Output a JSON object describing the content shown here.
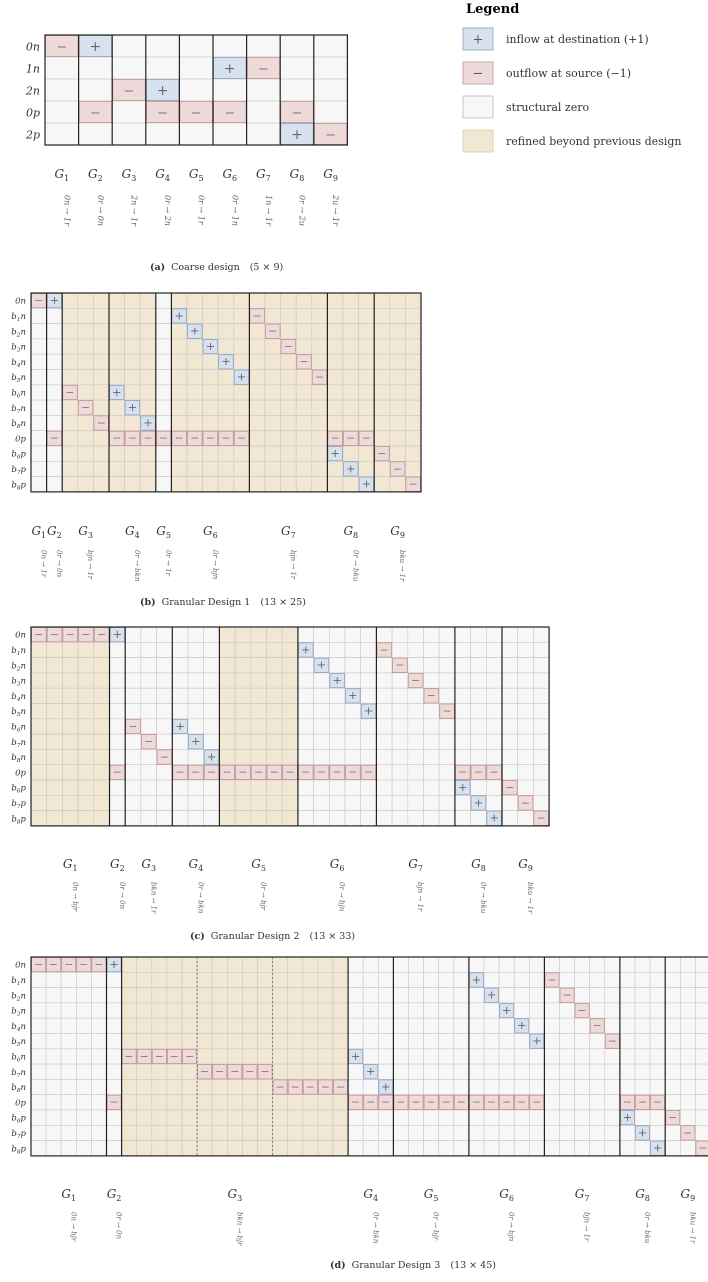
{
  "legend": {
    "title": "Legend",
    "items": [
      {
        "kind": "plus",
        "symbol": "+",
        "label": "inflow at destination (+1)"
      },
      {
        "kind": "minus",
        "symbol": "−",
        "label": "outflow at source (−1)"
      },
      {
        "kind": "zero",
        "symbol": "",
        "label": "structural zero"
      },
      {
        "kind": "refined",
        "symbol": "",
        "label": "refined beyond previous design"
      }
    ]
  },
  "colors": {
    "plus_fill": "#d7e2ee",
    "plus_stroke": "#8aa2bd",
    "minus_fill": "#efdada",
    "minus_stroke": "#c49393",
    "zero_fill": "#f7f7f7",
    "refined_fill": "#f1e7d2",
    "grid": "#c8c8c8",
    "block": "#222222",
    "text": "#333333"
  },
  "panels": [
    {
      "id": "a",
      "caption_letter": "(a)",
      "caption_text": "Coarse design",
      "caption_dims": "(5 × 9)",
      "rows": [
        "0n",
        "1n",
        "2n",
        "0p",
        "2p"
      ],
      "ncols": 9,
      "groups": [
        {
          "label": "G",
          "sub": "1",
          "flow": "0n → 1r",
          "start": 0,
          "size": 1
        },
        {
          "label": "G",
          "sub": "2",
          "flow": "0r → 0n",
          "start": 1,
          "size": 1
        },
        {
          "label": "G",
          "sub": "3",
          "flow": "2n → 1r",
          "start": 2,
          "size": 1
        },
        {
          "label": "G",
          "sub": "4",
          "flow": "0r → 2n",
          "start": 3,
          "size": 1
        },
        {
          "label": "G",
          "sub": "5",
          "flow": "0r → 1r",
          "start": 4,
          "size": 1
        },
        {
          "label": "G",
          "sub": "6",
          "flow": "0r → 1n",
          "start": 5,
          "size": 1
        },
        {
          "label": "G",
          "sub": "7",
          "flow": "1n → 1r",
          "start": 6,
          "size": 1
        },
        {
          "label": "G",
          "sub": "8",
          "flow": "0r → 2u",
          "start": 7,
          "size": 1
        },
        {
          "label": "G",
          "sub": "9",
          "flow": "2u → 1r",
          "start": 8,
          "size": 1
        }
      ],
      "shaded_cols": [],
      "dotted_cols": [],
      "minus": [
        [
          0,
          0
        ],
        [
          2,
          2
        ],
        [
          1,
          6
        ],
        [
          3,
          1
        ],
        [
          3,
          3
        ],
        [
          3,
          4
        ],
        [
          3,
          5
        ],
        [
          3,
          7
        ],
        [
          4,
          8
        ]
      ],
      "plus": [
        [
          0,
          1
        ],
        [
          2,
          3
        ],
        [
          1,
          5
        ],
        [
          4,
          7
        ]
      ]
    },
    {
      "id": "b",
      "caption_letter": "(b)",
      "caption_text": "Granular Design 1",
      "caption_dims": "(13 × 25)",
      "rows": [
        "0n",
        "b1n",
        "b2n",
        "b3n",
        "b4n",
        "b5n",
        "b6n",
        "b7n",
        "b8n",
        "0p",
        "b6p",
        "b7p",
        "b8p"
      ],
      "ncols": 25,
      "groups": [
        {
          "label": "G",
          "sub": "1",
          "flow": "0n → 1r",
          "start": 0,
          "size": 1
        },
        {
          "label": "G",
          "sub": "2",
          "flow": "0r → 0n",
          "start": 1,
          "size": 1
        },
        {
          "label": "G",
          "sub": "3",
          "flow": "bjn → 1r",
          "start": 2,
          "size": 3
        },
        {
          "label": "G",
          "sub": "4",
          "flow": "0r → bkn",
          "start": 5,
          "size": 3
        },
        {
          "label": "G",
          "sub": "5",
          "flow": "0r → 1r",
          "start": 8,
          "size": 1
        },
        {
          "label": "G",
          "sub": "6",
          "flow": "0r → bjn",
          "start": 9,
          "size": 5
        },
        {
          "label": "G",
          "sub": "7",
          "flow": "bjn → 1r",
          "start": 14,
          "size": 5
        },
        {
          "label": "G",
          "sub": "8",
          "flow": "0r → bku",
          "start": 19,
          "size": 3
        },
        {
          "label": "G",
          "sub": "9",
          "flow": "bku → 1r",
          "start": 22,
          "size": 3
        }
      ],
      "shaded_cols": [
        2,
        3,
        4,
        5,
        6,
        7,
        9,
        10,
        11,
        12,
        13,
        14,
        15,
        16,
        17,
        18,
        19,
        20,
        21,
        22,
        23,
        24
      ],
      "dotted_cols": [],
      "minus": [
        [
          0,
          0
        ],
        [
          9,
          1
        ],
        [
          6,
          2
        ],
        [
          7,
          3
        ],
        [
          8,
          4
        ],
        [
          9,
          5
        ],
        [
          9,
          6
        ],
        [
          9,
          7
        ],
        [
          9,
          8
        ],
        [
          9,
          9
        ],
        [
          9,
          10
        ],
        [
          9,
          11
        ],
        [
          9,
          12
        ],
        [
          9,
          13
        ],
        [
          1,
          14
        ],
        [
          2,
          15
        ],
        [
          3,
          16
        ],
        [
          4,
          17
        ],
        [
          5,
          18
        ],
        [
          9,
          19
        ],
        [
          9,
          20
        ],
        [
          9,
          21
        ],
        [
          10,
          22
        ],
        [
          11,
          23
        ],
        [
          12,
          24
        ]
      ],
      "plus": [
        [
          0,
          1
        ],
        [
          6,
          5
        ],
        [
          7,
          6
        ],
        [
          8,
          7
        ],
        [
          1,
          9
        ],
        [
          2,
          10
        ],
        [
          3,
          11
        ],
        [
          4,
          12
        ],
        [
          5,
          13
        ],
        [
          10,
          19
        ],
        [
          11,
          20
        ],
        [
          12,
          21
        ]
      ]
    },
    {
      "id": "c",
      "caption_letter": "(c)",
      "caption_text": "Granular Design 2",
      "caption_dims": "(13 × 33)",
      "rows": [
        "0n",
        "b1n",
        "b2n",
        "b3n",
        "b4n",
        "b5n",
        "b6n",
        "b7n",
        "b8n",
        "0p",
        "b6p",
        "b7p",
        "b8p"
      ],
      "ncols": 33,
      "groups": [
        {
          "label": "G",
          "sub": "1",
          "flow": "0n → bjr",
          "start": 0,
          "size": 5
        },
        {
          "label": "G",
          "sub": "2",
          "flow": "0r → 0n",
          "start": 5,
          "size": 1
        },
        {
          "label": "G",
          "sub": "3",
          "flow": "bkn → 1r",
          "start": 6,
          "size": 3
        },
        {
          "label": "G",
          "sub": "4",
          "flow": "0r → bkn",
          "start": 9,
          "size": 3
        },
        {
          "label": "G",
          "sub": "5",
          "flow": "0r → bjr",
          "start": 12,
          "size": 5
        },
        {
          "label": "G",
          "sub": "6",
          "flow": "0r → bjn",
          "start": 17,
          "size": 5
        },
        {
          "label": "G",
          "sub": "7",
          "flow": "bjn → 1r",
          "start": 22,
          "size": 5
        },
        {
          "label": "G",
          "sub": "8",
          "flow": "0r → bku",
          "start": 27,
          "size": 3
        },
        {
          "label": "G",
          "sub": "9",
          "flow": "bku → 1r",
          "start": 30,
          "size": 3
        }
      ],
      "shaded_cols": [
        0,
        1,
        2,
        3,
        4,
        12,
        13,
        14,
        15,
        16
      ],
      "dotted_cols": [],
      "minus": [
        [
          0,
          0
        ],
        [
          0,
          1
        ],
        [
          0,
          2
        ],
        [
          0,
          3
        ],
        [
          0,
          4
        ],
        [
          9,
          5
        ],
        [
          6,
          6
        ],
        [
          7,
          7
        ],
        [
          8,
          8
        ],
        [
          9,
          9
        ],
        [
          9,
          10
        ],
        [
          9,
          11
        ],
        [
          9,
          12
        ],
        [
          9,
          13
        ],
        [
          9,
          14
        ],
        [
          9,
          15
        ],
        [
          9,
          16
        ],
        [
          9,
          17
        ],
        [
          9,
          18
        ],
        [
          9,
          19
        ],
        [
          9,
          20
        ],
        [
          9,
          21
        ],
        [
          1,
          22
        ],
        [
          2,
          23
        ],
        [
          3,
          24
        ],
        [
          4,
          25
        ],
        [
          5,
          26
        ],
        [
          9,
          27
        ],
        [
          9,
          28
        ],
        [
          9,
          29
        ],
        [
          10,
          30
        ],
        [
          11,
          31
        ],
        [
          12,
          32
        ]
      ],
      "plus": [
        [
          0,
          5
        ],
        [
          6,
          9
        ],
        [
          7,
          10
        ],
        [
          8,
          11
        ],
        [
          1,
          17
        ],
        [
          2,
          18
        ],
        [
          3,
          19
        ],
        [
          4,
          20
        ],
        [
          5,
          21
        ],
        [
          10,
          27
        ],
        [
          11,
          28
        ],
        [
          12,
          29
        ]
      ]
    },
    {
      "id": "d",
      "caption_letter": "(d)",
      "caption_text": "Granular Design 3",
      "caption_dims": "(13 × 45)",
      "rows": [
        "0n",
        "b1n",
        "b2n",
        "b3n",
        "b4n",
        "b5n",
        "b6n",
        "b7n",
        "b8n",
        "0p",
        "b6p",
        "b7p",
        "b8p"
      ],
      "ncols": 45,
      "groups": [
        {
          "label": "G",
          "sub": "1",
          "flow": "0n → bjr",
          "start": 0,
          "size": 5
        },
        {
          "label": "G",
          "sub": "2",
          "flow": "0r → 0n",
          "start": 5,
          "size": 1
        },
        {
          "label": "G",
          "sub": "3",
          "flow": "bkn → bjr",
          "start": 6,
          "size": 15
        },
        {
          "label": "G",
          "sub": "4",
          "flow": "0r → bkn",
          "start": 21,
          "size": 3
        },
        {
          "label": "G",
          "sub": "5",
          "flow": "0r → bjr",
          "start": 24,
          "size": 5
        },
        {
          "label": "G",
          "sub": "6",
          "flow": "0r → bjn",
          "start": 29,
          "size": 5
        },
        {
          "label": "G",
          "sub": "7",
          "flow": "bjn → 1r",
          "start": 34,
          "size": 5
        },
        {
          "label": "G",
          "sub": "8",
          "flow": "0r → bku",
          "start": 39,
          "size": 3
        },
        {
          "label": "G",
          "sub": "9",
          "flow": "bku → 1r",
          "start": 42,
          "size": 3
        }
      ],
      "shaded_cols": [
        6,
        7,
        8,
        9,
        10,
        11,
        12,
        13,
        14,
        15,
        16,
        17,
        18,
        19,
        20
      ],
      "dotted_cols": [
        11,
        16
      ],
      "minus": [
        [
          0,
          0
        ],
        [
          0,
          1
        ],
        [
          0,
          2
        ],
        [
          0,
          3
        ],
        [
          0,
          4
        ],
        [
          9,
          5
        ],
        [
          6,
          6
        ],
        [
          6,
          7
        ],
        [
          6,
          8
        ],
        [
          6,
          9
        ],
        [
          6,
          10
        ],
        [
          7,
          11
        ],
        [
          7,
          12
        ],
        [
          7,
          13
        ],
        [
          7,
          14
        ],
        [
          7,
          15
        ],
        [
          8,
          16
        ],
        [
          8,
          17
        ],
        [
          8,
          18
        ],
        [
          8,
          19
        ],
        [
          8,
          20
        ],
        [
          9,
          21
        ],
        [
          9,
          22
        ],
        [
          9,
          23
        ],
        [
          9,
          24
        ],
        [
          9,
          25
        ],
        [
          9,
          26
        ],
        [
          9,
          27
        ],
        [
          9,
          28
        ],
        [
          9,
          29
        ],
        [
          9,
          30
        ],
        [
          9,
          31
        ],
        [
          9,
          32
        ],
        [
          9,
          33
        ],
        [
          1,
          34
        ],
        [
          2,
          35
        ],
        [
          3,
          36
        ],
        [
          4,
          37
        ],
        [
          5,
          38
        ],
        [
          9,
          39
        ],
        [
          9,
          40
        ],
        [
          9,
          41
        ],
        [
          10,
          42
        ],
        [
          11,
          43
        ],
        [
          12,
          44
        ]
      ],
      "plus": [
        [
          0,
          5
        ],
        [
          1,
          29
        ],
        [
          2,
          30
        ],
        [
          3,
          31
        ],
        [
          4,
          32
        ],
        [
          5,
          33
        ],
        [
          6,
          21
        ],
        [
          7,
          22
        ],
        [
          8,
          23
        ],
        [
          10,
          39
        ],
        [
          11,
          40
        ],
        [
          12,
          41
        ]
      ]
    }
  ]
}
